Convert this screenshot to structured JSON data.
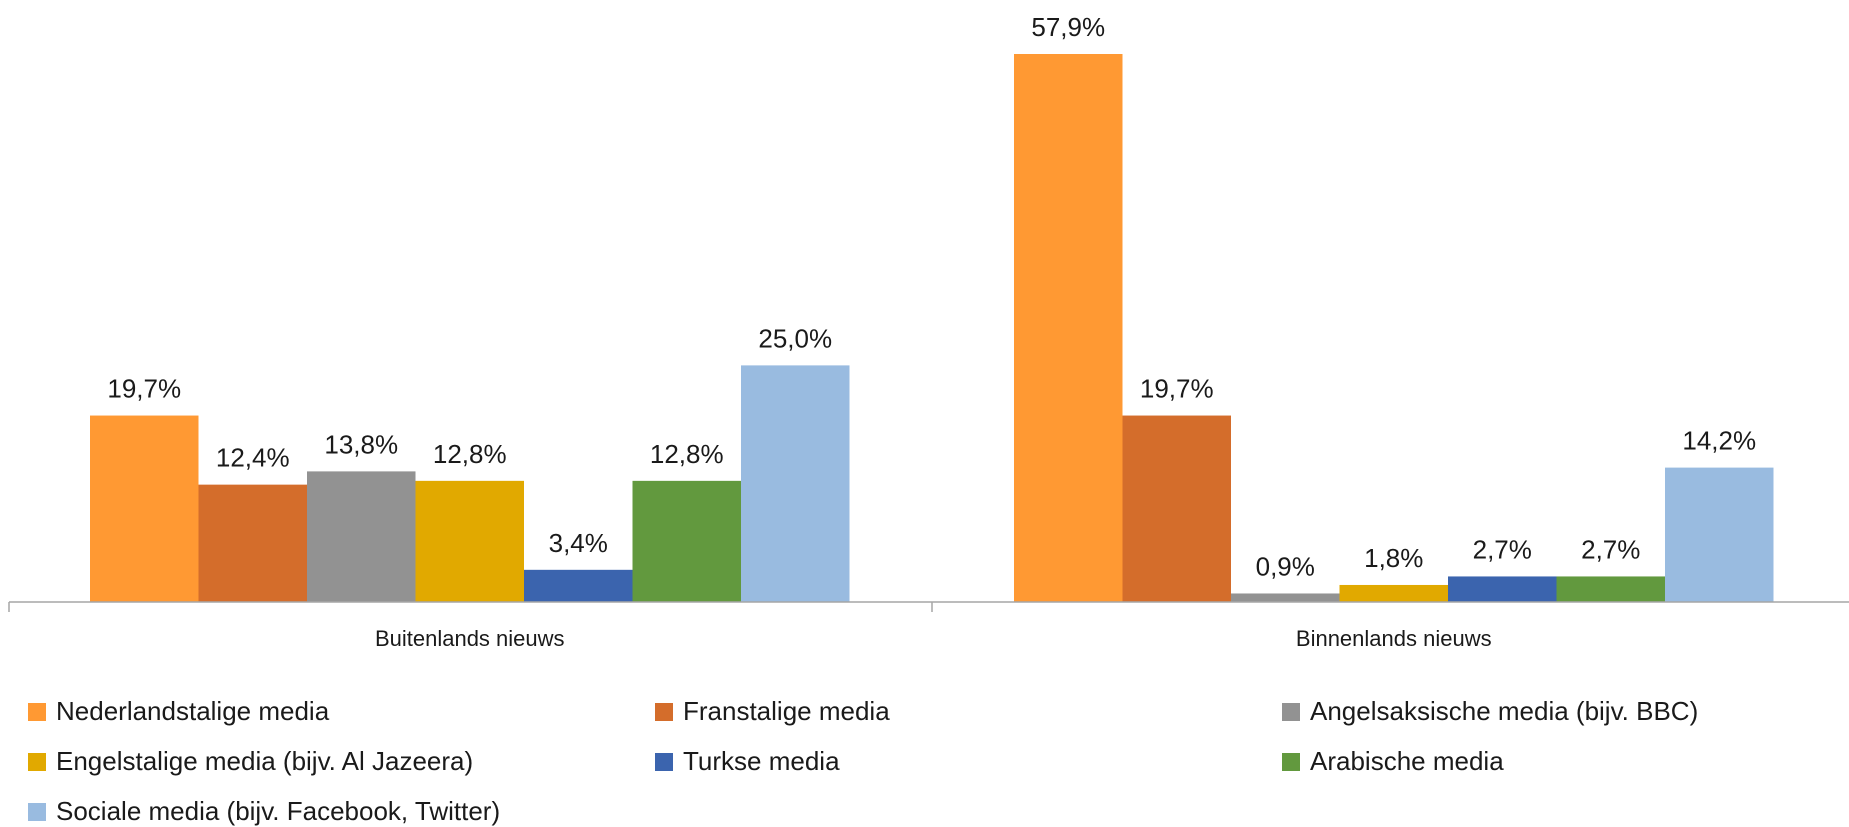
{
  "chart_data": {
    "type": "bar",
    "categories": [
      "Buitenlands nieuws",
      "Binnenlands nieuws"
    ],
    "series": [
      {
        "name": "Nederlandstalige media",
        "color": "#FF9933",
        "values": [
          19.7,
          57.9
        ],
        "labels": [
          "19,7%",
          "57,9%"
        ]
      },
      {
        "name": "Franstalige media",
        "color": "#D46D2B",
        "values": [
          12.4,
          19.7
        ],
        "labels": [
          "12,4%",
          "19,7%"
        ]
      },
      {
        "name": "Angelsaksische media (bijv. BBC)",
        "color": "#929292",
        "values": [
          13.8,
          0.9
        ],
        "labels": [
          "13,8%",
          "0,9%"
        ]
      },
      {
        "name": "Engelstalige media (bijv. Al Jazeera)",
        "color": "#E1A900",
        "values": [
          12.8,
          1.8
        ],
        "labels": [
          "12,8%",
          "1,8%"
        ]
      },
      {
        "name": "Turkse media",
        "color": "#3B64AE",
        "values": [
          3.4,
          2.7
        ],
        "labels": [
          "3,4%",
          "2,7%"
        ]
      },
      {
        "name": "Arabische media",
        "color": "#62993E",
        "values": [
          12.8,
          2.7
        ],
        "labels": [
          "12,8%",
          "2,7%"
        ]
      },
      {
        "name": "Sociale media (bijv. Facebook, Twitter)",
        "color": "#99BBE0",
        "values": [
          25.0,
          14.2
        ],
        "labels": [
          "25,0%",
          "14,2%"
        ]
      }
    ],
    "ylim": [
      0,
      57.9
    ],
    "grid": false,
    "legend_position": "bottom"
  }
}
